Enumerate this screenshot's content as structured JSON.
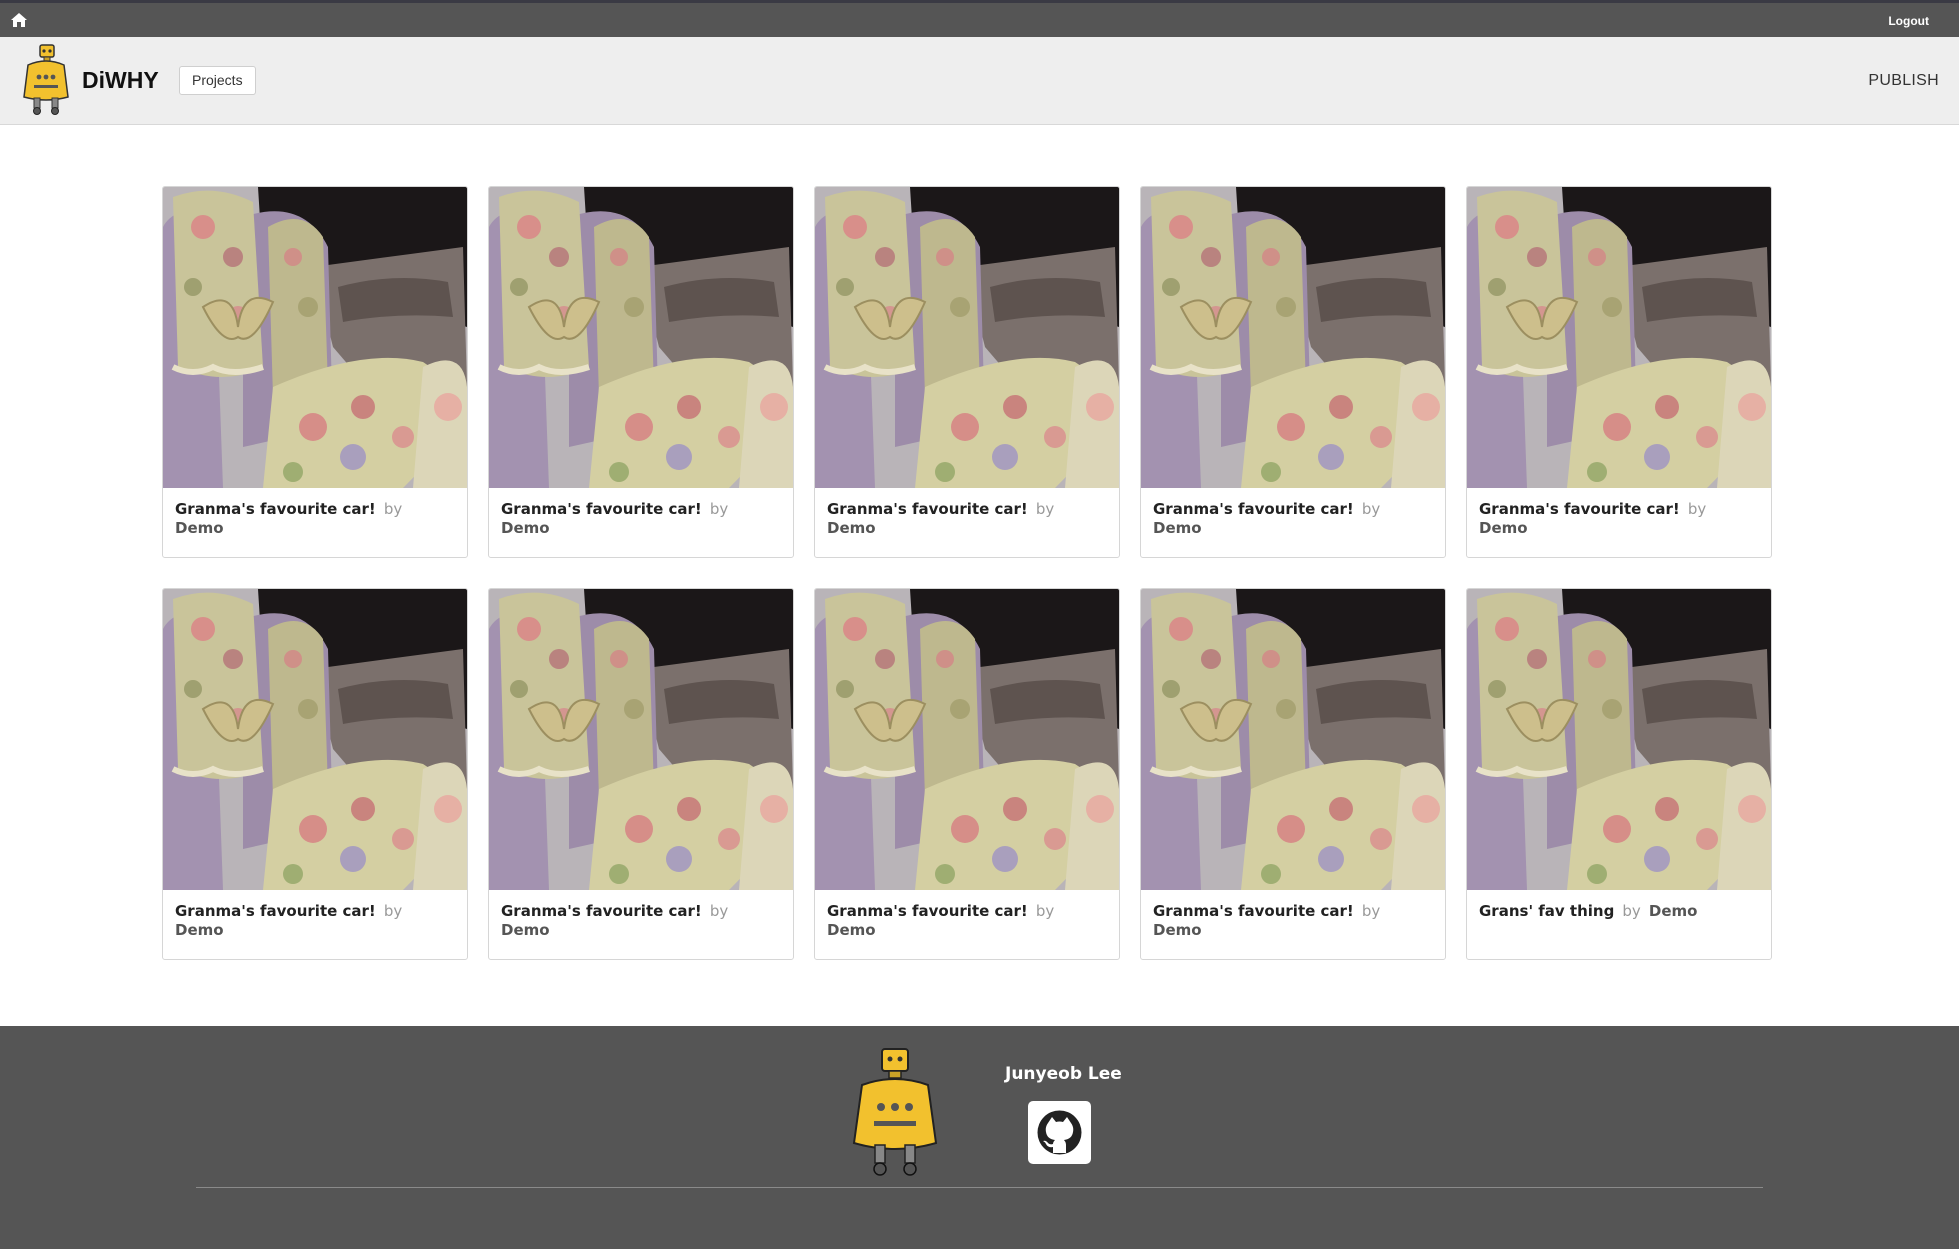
{
  "topbar": {
    "logout_label": "Logout"
  },
  "header": {
    "brand": "DiWHY",
    "projects_label": "Projects",
    "publish_label": "PUBLISH"
  },
  "cards": [
    {
      "title": "Granma's favourite car!",
      "by": "by",
      "author": "Demo"
    },
    {
      "title": "Granma's favourite car!",
      "by": "by",
      "author": "Demo"
    },
    {
      "title": "Granma's favourite car!",
      "by": "by",
      "author": "Demo"
    },
    {
      "title": "Granma's favourite car!",
      "by": "by",
      "author": "Demo"
    },
    {
      "title": "Granma's favourite car!",
      "by": "by",
      "author": "Demo"
    },
    {
      "title": "Granma's favourite car!",
      "by": "by",
      "author": "Demo"
    },
    {
      "title": "Granma's favourite car!",
      "by": "by",
      "author": "Demo"
    },
    {
      "title": "Granma's favourite car!",
      "by": "by",
      "author": "Demo"
    },
    {
      "title": "Granma's favourite car!",
      "by": "by",
      "author": "Demo"
    },
    {
      "title": "Grans' fav thing",
      "by": "by",
      "author": "Demo"
    }
  ],
  "footer": {
    "name": "Junyeob Lee"
  },
  "icons": {
    "home": "home-icon",
    "github": "github-icon",
    "logo": "robot-logo"
  },
  "colors": {
    "topbar": "#555555",
    "header": "#eeeeee",
    "footer": "#555555",
    "robot": "#f2c12e"
  }
}
